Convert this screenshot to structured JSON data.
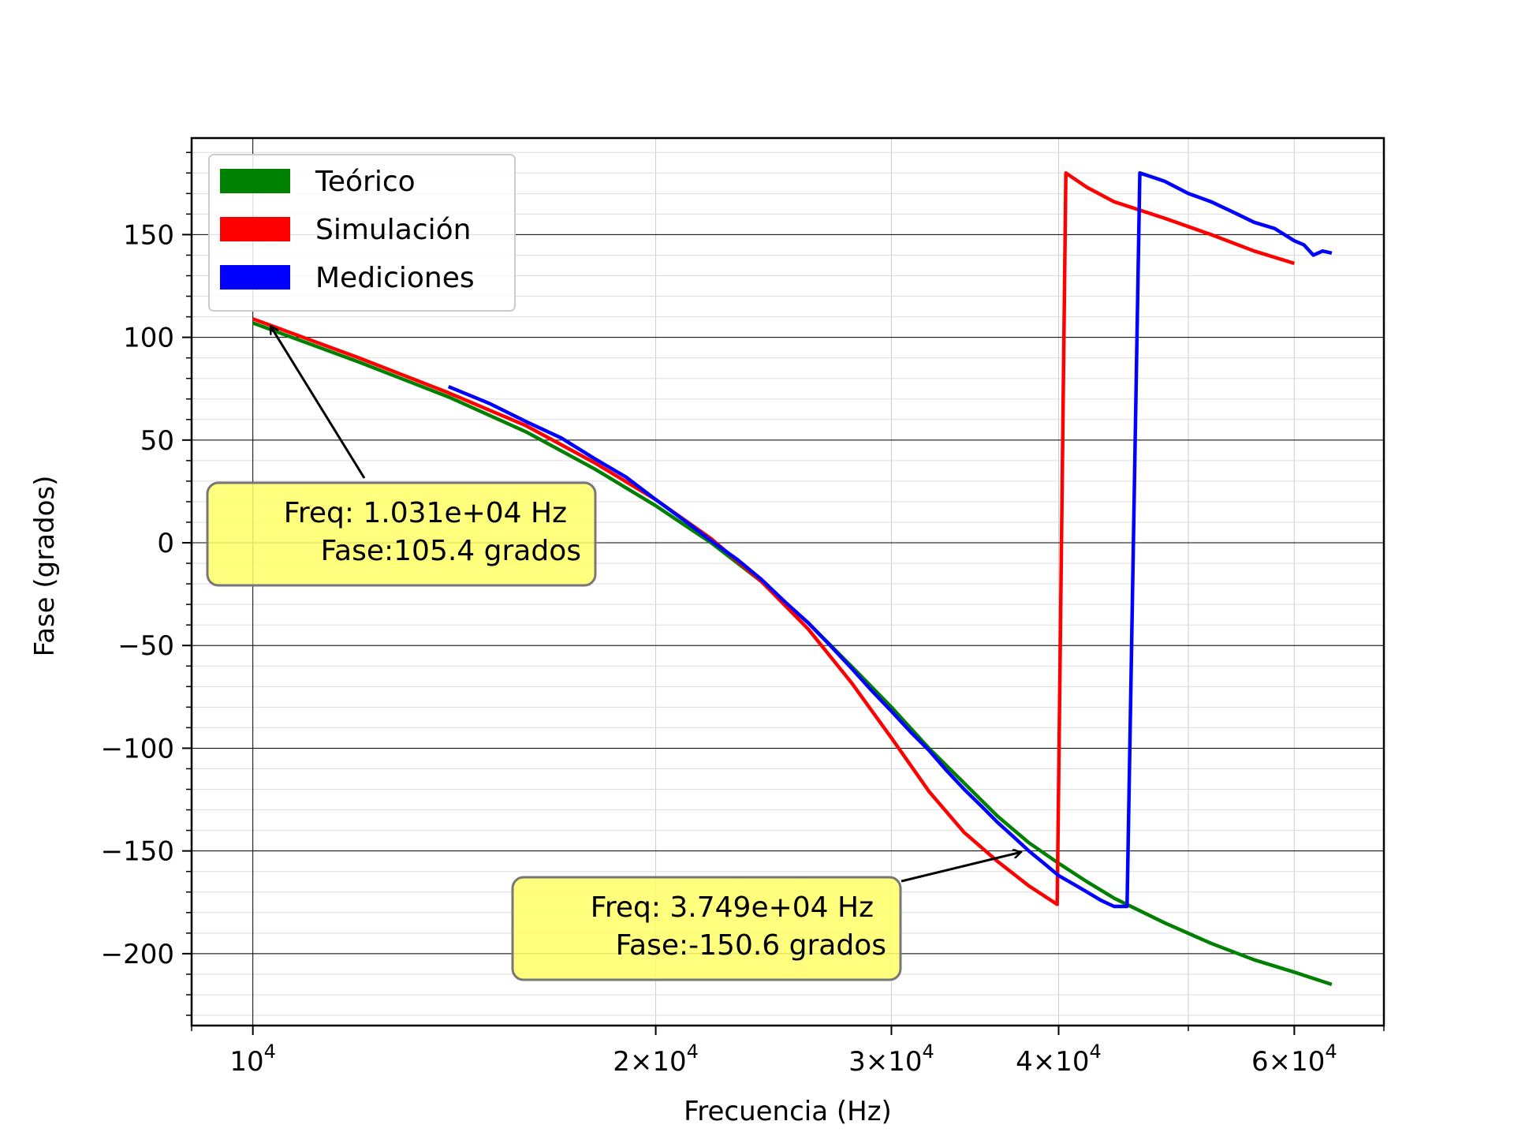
{
  "chart_data": {
    "type": "line",
    "xlabel": "Frecuencia (Hz)",
    "ylabel": "Fase (grados)",
    "x_scale": "log",
    "xlim": [
      9000,
      70000
    ],
    "ylim": [
      -235,
      197
    ],
    "grid": true,
    "legend_position": "upper left",
    "x_ticks": [
      {
        "value": 10000,
        "base": "10",
        "exp": "4"
      },
      {
        "value": 20000,
        "base": "2×10",
        "exp": "4"
      },
      {
        "value": 30000,
        "base": "3×10",
        "exp": "4"
      },
      {
        "value": 40000,
        "base": "4×10",
        "exp": "4"
      },
      {
        "value": 60000,
        "base": "6×10",
        "exp": "4"
      }
    ],
    "y_ticks": [
      {
        "value": 150,
        "label": "150"
      },
      {
        "value": 100,
        "label": "100"
      },
      {
        "value": 50,
        "label": "50"
      },
      {
        "value": 0,
        "label": "0"
      },
      {
        "value": -50,
        "label": "−50"
      },
      {
        "value": -100,
        "label": "−100"
      },
      {
        "value": -150,
        "label": "−150"
      },
      {
        "value": -200,
        "label": "−200"
      }
    ],
    "series": [
      {
        "name": "Teórico",
        "color": "#008000",
        "x": [
          10000,
          12000,
          14000,
          16000,
          18000,
          20000,
          22000,
          24000,
          26000,
          28000,
          30000,
          32000,
          34000,
          36000,
          38000,
          40000,
          42000,
          44000,
          48000,
          52000,
          56000,
          60000,
          64000
        ],
        "y": [
          107,
          88,
          71,
          54,
          36,
          18,
          0,
          -19,
          -39,
          -60,
          -80,
          -100,
          -117,
          -133,
          -146,
          -156,
          -165,
          -173,
          -185,
          -195,
          -203,
          -209,
          -215
        ]
      },
      {
        "name": "Simulación",
        "color": "#ff0000",
        "x": [
          10000,
          12000,
          14000,
          16000,
          18000,
          20000,
          22000,
          24000,
          26000,
          28000,
          30000,
          32000,
          34000,
          36000,
          38000,
          39900,
          40500,
          42000,
          44000,
          48000,
          52000,
          56000,
          60000
        ],
        "y": [
          109,
          90,
          73,
          57,
          39,
          21,
          2,
          -19,
          -42,
          -68,
          -95,
          -121,
          -141,
          -155,
          -167,
          -176,
          180,
          173,
          166,
          158,
          150,
          142,
          136
        ]
      },
      {
        "name": "Mediciones",
        "color": "#0000ff",
        "x": [
          14000,
          15000,
          16000,
          17000,
          18000,
          19000,
          20000,
          21000,
          22000,
          23000,
          24000,
          25000,
          26000,
          27000,
          28000,
          29000,
          30000,
          31000,
          32000,
          33000,
          34000,
          35000,
          36000,
          37000,
          38000,
          39000,
          40000,
          41000,
          42000,
          43000,
          44000,
          45000,
          46000,
          47000,
          48000,
          50000,
          52000,
          54000,
          56000,
          58000,
          60000,
          61000,
          62000,
          63000,
          64000
        ],
        "y": [
          76,
          68,
          59,
          51,
          41,
          32,
          21,
          11,
          1,
          -8,
          -18,
          -29,
          -39,
          -50,
          -61,
          -72,
          -82,
          -92,
          -101,
          -111,
          -120,
          -128,
          -136,
          -143,
          -150,
          -156,
          -162,
          -166,
          -170,
          -174,
          -177,
          -177,
          180,
          178,
          176,
          170,
          166,
          161,
          156,
          153,
          147,
          145,
          140,
          142,
          141
        ]
      }
    ],
    "annotations": [
      {
        "lines": [
          "Freq: 1.031e+04  Hz",
          "Fase:105.4 grados"
        ],
        "x": 10310,
        "y": 105.4
      },
      {
        "lines": [
          "Freq: 3.749e+04  Hz",
          "Fase:-150.6 grados"
        ],
        "x": 37490,
        "y": -150.6
      }
    ]
  }
}
